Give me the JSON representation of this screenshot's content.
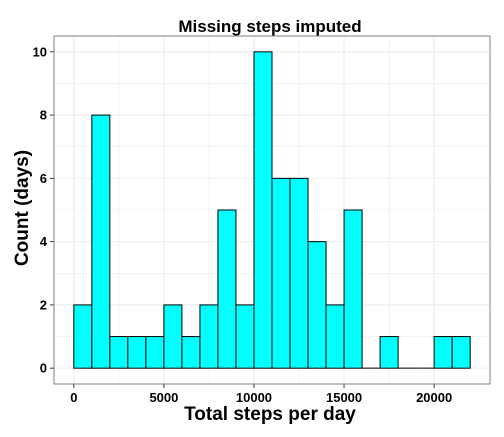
{
  "chart_data": {
    "type": "bar",
    "title": "Missing steps imputed",
    "xlabel": "Total steps per day",
    "ylabel": "Count (days)",
    "bin_width": 1000,
    "bins": [
      {
        "start": 0,
        "end": 1000,
        "count": 2
      },
      {
        "start": 1000,
        "end": 2000,
        "count": 8
      },
      {
        "start": 2000,
        "end": 3000,
        "count": 1
      },
      {
        "start": 3000,
        "end": 4000,
        "count": 1
      },
      {
        "start": 4000,
        "end": 5000,
        "count": 1
      },
      {
        "start": 5000,
        "end": 6000,
        "count": 2
      },
      {
        "start": 6000,
        "end": 7000,
        "count": 1
      },
      {
        "start": 7000,
        "end": 8000,
        "count": 2
      },
      {
        "start": 8000,
        "end": 9000,
        "count": 5
      },
      {
        "start": 9000,
        "end": 10000,
        "count": 2
      },
      {
        "start": 10000,
        "end": 11000,
        "count": 10
      },
      {
        "start": 11000,
        "end": 12000,
        "count": 6
      },
      {
        "start": 12000,
        "end": 13000,
        "count": 6
      },
      {
        "start": 13000,
        "end": 14000,
        "count": 4
      },
      {
        "start": 14000,
        "end": 15000,
        "count": 2
      },
      {
        "start": 15000,
        "end": 16000,
        "count": 5
      },
      {
        "start": 16000,
        "end": 17000,
        "count": 0
      },
      {
        "start": 17000,
        "end": 18000,
        "count": 1
      },
      {
        "start": 18000,
        "end": 19000,
        "count": 0
      },
      {
        "start": 19000,
        "end": 20000,
        "count": 0
      },
      {
        "start": 20000,
        "end": 21000,
        "count": 1
      },
      {
        "start": 21000,
        "end": 22000,
        "count": 1
      }
    ],
    "xlim": [
      -1100,
      23100
    ],
    "ylim": [
      -0.5,
      10.5
    ],
    "x_ticks": [
      0,
      5000,
      10000,
      15000,
      20000
    ],
    "y_ticks": [
      0,
      2,
      4,
      6,
      8,
      10
    ],
    "grid": true,
    "bar_fill": "#00ffff",
    "bar_stroke": "#000000",
    "grid_color": "#ebebeb",
    "panel_border": "#7f7f7f"
  }
}
